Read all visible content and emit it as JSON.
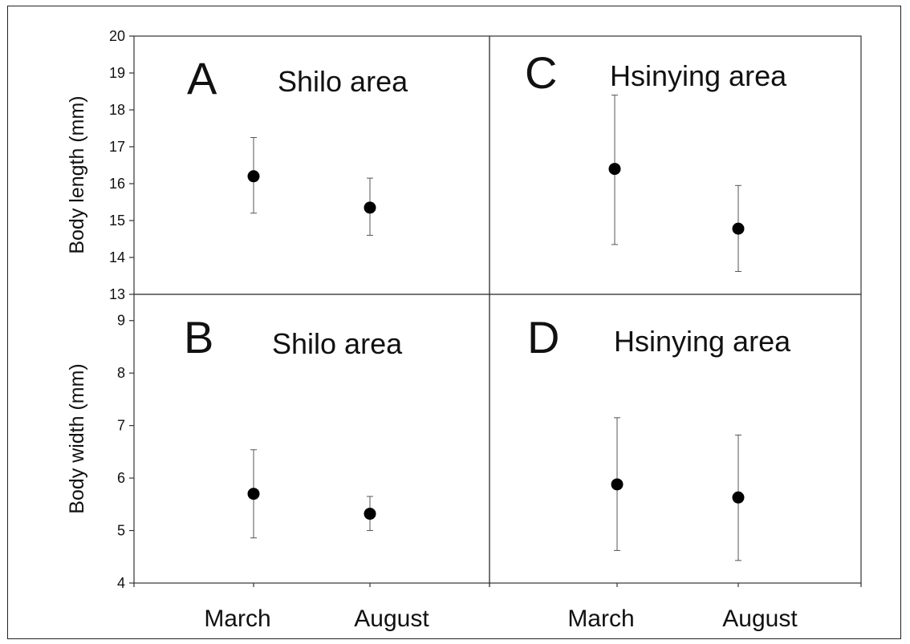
{
  "chart_data": [
    {
      "type": "scatter",
      "panel_label": "A",
      "title": "Shilo area",
      "ylabel": "Body length (mm)",
      "categories": [
        "March",
        "August"
      ],
      "y_ticks": [
        "20",
        "19",
        "18",
        "17",
        "16",
        "15",
        "14",
        "13"
      ],
      "ylim": [
        13,
        20
      ],
      "values": [
        16.2,
        15.35
      ],
      "error_low": [
        15.2,
        14.6
      ],
      "error_high": [
        17.25,
        16.15
      ],
      "grid": false
    },
    {
      "type": "scatter",
      "panel_label": "B",
      "title": "Shilo area",
      "ylabel": "Body width (mm)",
      "categories": [
        "March",
        "August"
      ],
      "x_tick_labels": [
        "March",
        "August"
      ],
      "y_ticks": [
        "9",
        "8",
        "7",
        "6",
        "5",
        "4"
      ],
      "ylim": [
        4,
        9.5
      ],
      "values": [
        5.7,
        5.32
      ],
      "error_low": [
        4.86,
        5.0
      ],
      "error_high": [
        6.54,
        5.65
      ],
      "grid": false
    },
    {
      "type": "scatter",
      "panel_label": "C",
      "title": "Hsinying area",
      "categories": [
        "March",
        "August"
      ],
      "ylim": [
        13,
        20
      ],
      "values": [
        16.4,
        14.78
      ],
      "error_low": [
        14.35,
        13.62
      ],
      "error_high": [
        18.4,
        15.95
      ],
      "grid": false
    },
    {
      "type": "scatter",
      "panel_label": "D",
      "title": "Hsinying area",
      "categories": [
        "March",
        "August"
      ],
      "x_tick_labels": [
        "March",
        "August"
      ],
      "ylim": [
        4,
        9.5
      ],
      "values": [
        5.88,
        5.63
      ],
      "error_low": [
        4.62,
        4.43
      ],
      "error_high": [
        7.15,
        6.82
      ],
      "grid": false
    }
  ]
}
